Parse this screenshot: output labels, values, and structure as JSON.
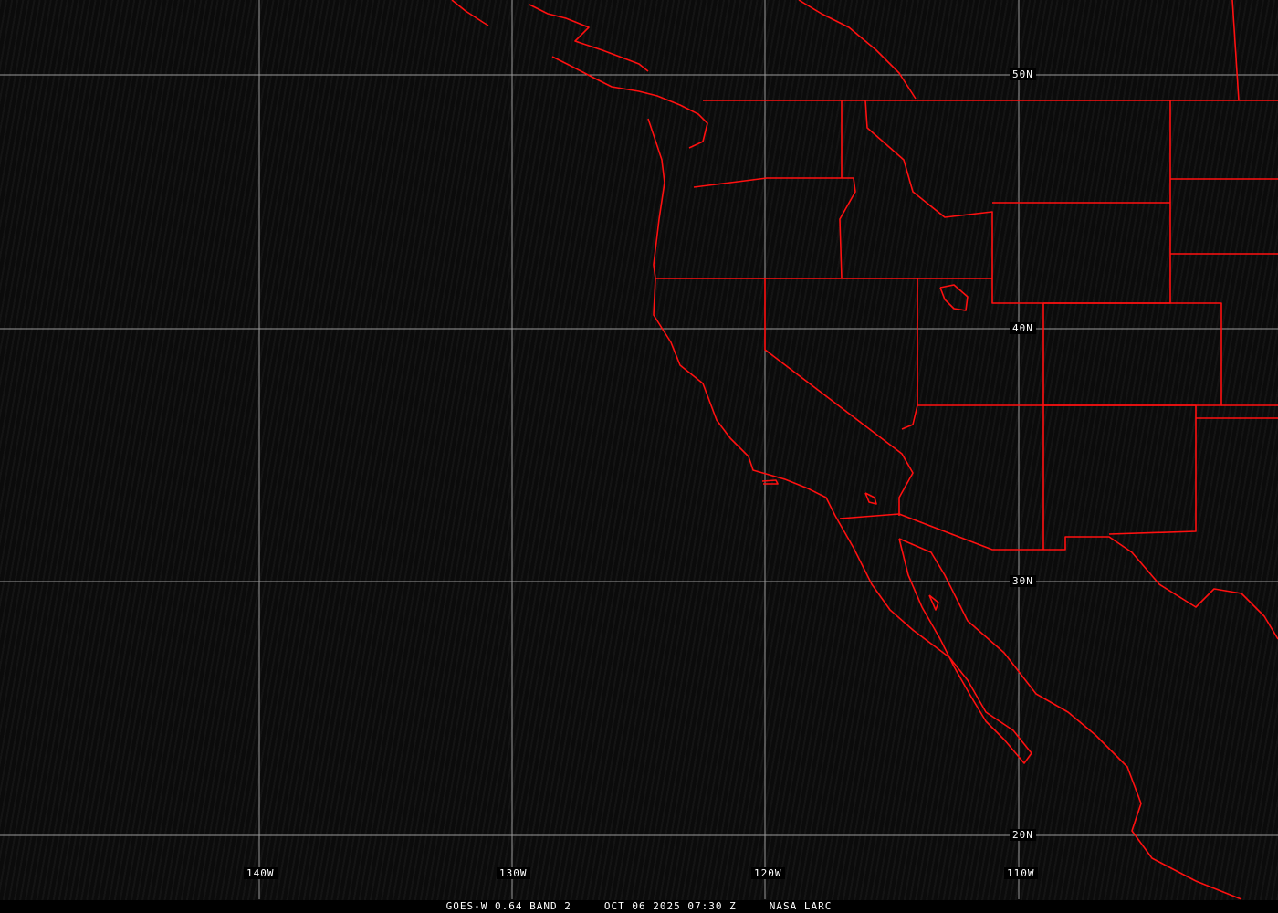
{
  "map": {
    "latitude_labels": [
      "50N",
      "40N",
      "30N",
      "20N"
    ],
    "longitude_labels": [
      "140W",
      "130W",
      "120W",
      "110W"
    ],
    "grid_color": "#9a9a9a",
    "boundary_color": "#ff1010"
  },
  "caption": {
    "product": "GOES-W 0.64 BAND 2",
    "datetime": "OCT 06 2025 07:30 Z",
    "source": "NASA LARC"
  }
}
